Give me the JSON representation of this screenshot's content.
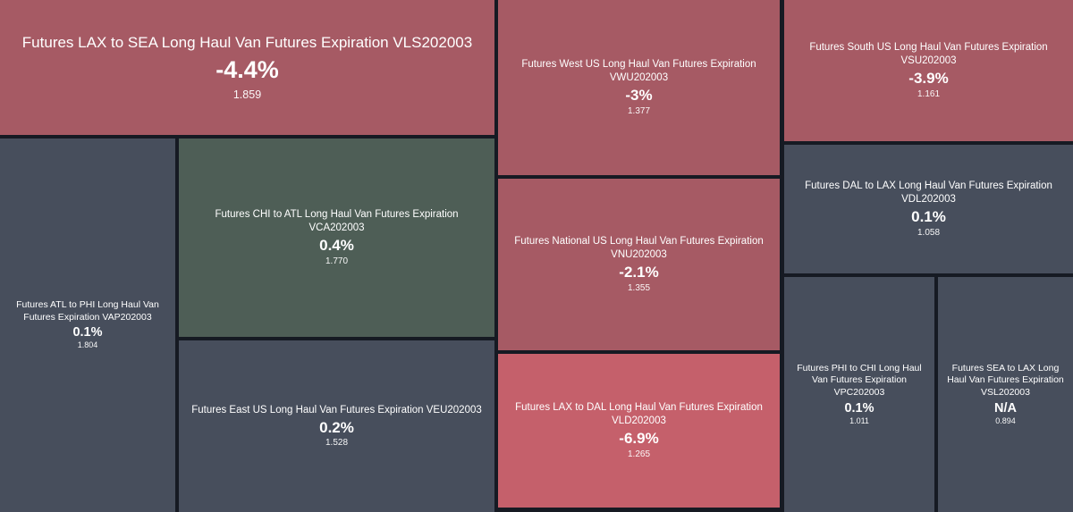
{
  "colors": {
    "background_border": "#161a23",
    "negative_strong": "#c5606b",
    "negative": "#a65a64",
    "neutral": "#474e5c",
    "positive": "#4e5e56",
    "text": "#ffffff"
  },
  "chart_data": {
    "type": "treemap",
    "title": "",
    "items": [
      {
        "label": "Futures LAX to SEA Long Haul Van Futures Expiration VLS202003",
        "change_pct": -4.4,
        "value": 1.859
      },
      {
        "label": "Futures ATL to PHI Long Haul Van Futures Expiration VAP202003",
        "change_pct": 0.1,
        "value": 1.804
      },
      {
        "label": "Futures CHI to ATL Long Haul Van Futures Expiration VCA202003",
        "change_pct": 0.4,
        "value": 1.77
      },
      {
        "label": "Futures East US Long Haul Van Futures Expiration VEU202003",
        "change_pct": 0.2,
        "value": 1.528
      },
      {
        "label": "Futures West US Long Haul Van Futures Expiration VWU202003",
        "change_pct": -3.0,
        "value": 1.377
      },
      {
        "label": "Futures National US Long Haul Van Futures Expiration VNU202003",
        "change_pct": -2.1,
        "value": 1.355
      },
      {
        "label": "Futures LAX to DAL Long Haul Van Futures Expiration VLD202003",
        "change_pct": -6.9,
        "value": 1.265
      },
      {
        "label": "Futures South US Long Haul Van Futures Expiration VSU202003",
        "change_pct": -3.9,
        "value": 1.161
      },
      {
        "label": "Futures DAL to LAX Long Haul Van Futures Expiration VDL202003",
        "change_pct": 0.1,
        "value": 1.058
      },
      {
        "label": "Futures PHI to CHI Long Haul Van Futures Expiration VPC202003",
        "change_pct": 0.1,
        "value": 1.011
      },
      {
        "label": "Futures SEA to LAX Long Haul Van Futures Expiration VSL202003",
        "change_pct": null,
        "value": 0.894
      }
    ]
  },
  "tiles": [
    {
      "title": "Futures LAX to SEA Long Haul Van Futures Expiration VLS202003",
      "change": "-4.4%",
      "value": "1.859",
      "color": "#a65a64"
    },
    {
      "title": "Futures ATL to PHI Long Haul Van Futures Expiration VAP202003",
      "change": "0.1%",
      "value": "1.804",
      "color": "#474e5c"
    },
    {
      "title": "Futures CHI to ATL Long Haul Van Futures Expiration VCA202003",
      "change": "0.4%",
      "value": "1.770",
      "color": "#4e5e56"
    },
    {
      "title": "Futures East US Long Haul Van Futures Expiration VEU202003",
      "change": "0.2%",
      "value": "1.528",
      "color": "#474e5c"
    },
    {
      "title": "Futures West US Long Haul Van Futures Expiration VWU202003",
      "change": "-3%",
      "value": "1.377",
      "color": "#a65a64"
    },
    {
      "title": "Futures National US Long Haul Van Futures Expiration VNU202003",
      "change": "-2.1%",
      "value": "1.355",
      "color": "#a65a64"
    },
    {
      "title": "Futures LAX to DAL Long Haul Van Futures Expiration VLD202003",
      "change": "-6.9%",
      "value": "1.265",
      "color": "#c5606b"
    },
    {
      "title": "Futures South US Long Haul Van Futures Expiration VSU202003",
      "change": "-3.9%",
      "value": "1.161",
      "color": "#a65a64"
    },
    {
      "title": "Futures DAL to LAX Long Haul Van Futures Expiration VDL202003",
      "change": "0.1%",
      "value": "1.058",
      "color": "#474e5c"
    },
    {
      "title": "Futures PHI to CHI Long Haul Van Futures Expiration VPC202003",
      "change": "0.1%",
      "value": "1.011",
      "color": "#474e5c"
    },
    {
      "title": "Futures SEA to LAX Long Haul Van Futures Expiration VSL202003",
      "change": "N/A",
      "value": "0.894",
      "color": "#474e5c"
    }
  ]
}
